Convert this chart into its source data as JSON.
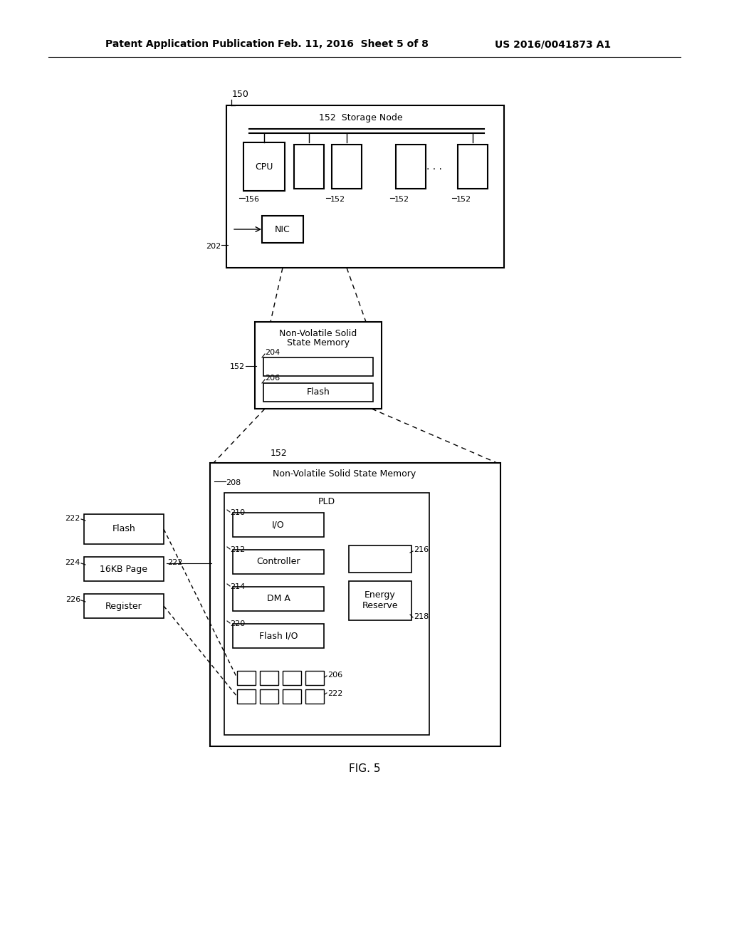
{
  "bg_color": "#ffffff",
  "header_text": "Patent Application Publication",
  "header_date": "Feb. 11, 2016  Sheet 5 of 8",
  "header_patent": "US 2016/0041873 A1",
  "fig_label": "FIG. 5"
}
